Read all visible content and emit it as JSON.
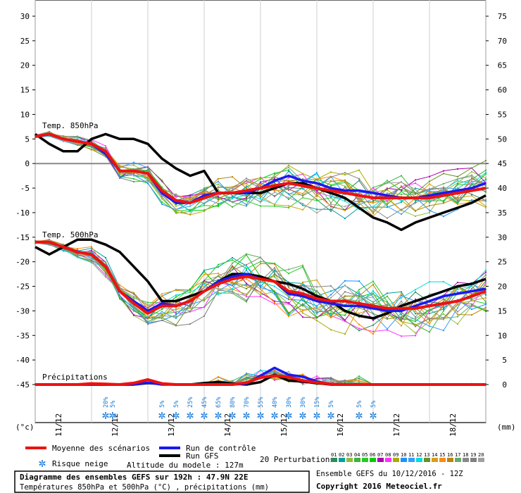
{
  "chart_data": {
    "type": "line",
    "title": "Diagramme des ensembles GEFS sur 192h : 47.9N 22E",
    "subtitle": "Températures 850hPa et 500hPa (°C) , précipitations (mm)",
    "left_unit": "(°c)",
    "right_unit": "(mm)",
    "left_axis": {
      "min": -45,
      "max": 30,
      "step": 5
    },
    "right_axis": {
      "min": 0,
      "max": 75,
      "step": 5
    },
    "x_dates": [
      "11/12",
      "12/12",
      "13/12",
      "14/12",
      "15/12",
      "16/12",
      "17/12",
      "18/12"
    ],
    "x_hours": {
      "start": 0,
      "end": 192,
      "step": 6
    },
    "section_labels": [
      "Temp. 850hPa",
      "Temp. 500hPa",
      "Précipitations"
    ],
    "series": [
      {
        "name": "Moyenne des scénarios",
        "color": "#ee1111",
        "t850": [
          5.5,
          6,
          5,
          4.5,
          4,
          2.5,
          -1.5,
          -1.5,
          -2,
          -5.5,
          -7.5,
          -8,
          -7,
          -6,
          -6,
          -5.5,
          -5,
          -4.5,
          -4,
          -4.5,
          -5,
          -5.5,
          -6,
          -6.5,
          -7,
          -7,
          -7,
          -7,
          -7,
          -6.5,
          -6,
          -5.5,
          -5
        ],
        "t500": [
          -16,
          -16,
          -17,
          -18,
          -18.5,
          -21,
          -26,
          -28.5,
          -30.5,
          -29,
          -29,
          -28,
          -26,
          -24.5,
          -23.5,
          -23,
          -23.5,
          -24,
          -26,
          -26.5,
          -27.5,
          -28,
          -28,
          -28.5,
          -29,
          -29.5,
          -29.5,
          -29.5,
          -29,
          -28.5,
          -28,
          -27,
          -26
        ],
        "precip": [
          0,
          0,
          0,
          0,
          0.2,
          0.1,
          0,
          0.3,
          1.0,
          0.2,
          0,
          0,
          0,
          0,
          0,
          0.4,
          1.4,
          1.8,
          1.5,
          0.8,
          0.4,
          0.1,
          0,
          0,
          0,
          0,
          0,
          0,
          0,
          0,
          0,
          0,
          0
        ]
      },
      {
        "name": "Run de contrôle",
        "color": "#1a1aee",
        "t850": [
          5.5,
          6,
          5,
          4.5,
          4,
          2,
          -1.5,
          -1.5,
          -2,
          -6,
          -8,
          -8,
          -6.5,
          -6,
          -6,
          -6,
          -5,
          -3.5,
          -2.5,
          -3.5,
          -4,
          -5,
          -5.5,
          -5.5,
          -6,
          -6.5,
          -7,
          -7,
          -6.5,
          -6,
          -5.5,
          -5,
          -4
        ],
        "t500": [
          -16,
          -16,
          -17,
          -18,
          -18.5,
          -21,
          -26,
          -28,
          -30,
          -28.5,
          -29,
          -28,
          -26,
          -24,
          -23,
          -22.5,
          -23.5,
          -24,
          -26.5,
          -27,
          -28,
          -28.5,
          -29,
          -29,
          -29.5,
          -30,
          -30,
          -29,
          -28,
          -27,
          -26.5,
          -26,
          -25.5
        ],
        "precip": [
          0,
          0,
          0,
          0,
          0,
          0,
          0,
          0,
          0.4,
          0,
          0,
          0,
          0,
          0,
          0,
          0.2,
          1.8,
          3.4,
          2.0,
          1.6,
          0.6,
          0,
          0,
          0,
          0,
          0,
          0,
          0,
          0,
          0,
          0,
          0,
          0
        ]
      },
      {
        "name": "Run GFS",
        "color": "#000000",
        "t850": [
          6,
          4,
          2.5,
          2.5,
          5,
          6,
          5,
          5,
          4,
          1,
          -1,
          -2.5,
          -1.5,
          -6,
          -6,
          -6,
          -6,
          -5,
          -4,
          -4,
          -5,
          -6,
          -7,
          -9,
          -11,
          -12,
          -13.5,
          -12,
          -11,
          -10,
          -9,
          -8,
          -6.5
        ],
        "t500": [
          -17,
          -18.5,
          -17,
          -15.5,
          -15.5,
          -16.5,
          -18,
          -21,
          -24,
          -28,
          -28,
          -27,
          -26,
          -24,
          -22.5,
          -22.5,
          -23,
          -24,
          -24.5,
          -25.5,
          -27,
          -28,
          -30,
          -31,
          -31.5,
          -30.5,
          -29,
          -28,
          -27,
          -26,
          -25,
          -24.5,
          -23.5
        ],
        "precip": [
          0,
          0,
          0,
          0,
          0,
          0,
          0,
          0,
          0.3,
          0.1,
          0,
          0,
          0.3,
          0.5,
          0.2,
          0,
          0.5,
          2.0,
          0.8,
          0.6,
          0.3,
          0,
          0,
          0,
          0,
          0,
          0,
          0,
          0,
          0,
          0,
          0,
          0
        ]
      }
    ],
    "snow_risk": [
      {
        "hour": 30,
        "label": "20%"
      },
      {
        "hour": 33,
        "label": "5%"
      },
      {
        "hour": 54,
        "label": "5%"
      },
      {
        "hour": 60,
        "label": "5%"
      },
      {
        "hour": 66,
        "label": "25%"
      },
      {
        "hour": 72,
        "label": "45%"
      },
      {
        "hour": 78,
        "label": "65%"
      },
      {
        "hour": 84,
        "label": "80%"
      },
      {
        "hour": 90,
        "label": "70%"
      },
      {
        "hour": 96,
        "label": "55%"
      },
      {
        "hour": 102,
        "label": "40%"
      },
      {
        "hour": 108,
        "label": "30%"
      },
      {
        "hour": 114,
        "label": "30%"
      },
      {
        "hour": 120,
        "label": "15%"
      },
      {
        "hour": 126,
        "label": "5%"
      },
      {
        "hour": 138,
        "label": "5%"
      },
      {
        "hour": 144,
        "label": "5%"
      }
    ],
    "perturbations": {
      "label": "20 Perturbations",
      "numbers": [
        "01",
        "02",
        "03",
        "04",
        "05",
        "06",
        "07",
        "08",
        "09",
        "10",
        "11",
        "12",
        "13",
        "14",
        "15",
        "16",
        "17",
        "18",
        "19",
        "20"
      ],
      "colors": [
        "#2e8b57",
        "#00a0a0",
        "#8fbc3f",
        "#3cb33c",
        "#22cc22",
        "#00cc00",
        "#aa00aa",
        "#ff33ff",
        "#aaaa00",
        "#1e90ff",
        "#33a0ff",
        "#00dddd",
        "#6b8e23",
        "#d4a017",
        "#ff8c00",
        "#b8860b",
        "#66aa66",
        "#888888",
        "#808080",
        "#a0a0a0"
      ]
    }
  },
  "legend": {
    "mean": "Moyenne des scénarios",
    "control": "Run de contrôle",
    "gfs": "Run GFS",
    "snow": "Risque neige",
    "altitude": "Altitude du modele : 127m"
  },
  "footer": {
    "ensemble": "Ensemble GEFS du 10/12/2016 - 12Z",
    "copyright": "Copyright 2016 Meteociel.fr"
  }
}
